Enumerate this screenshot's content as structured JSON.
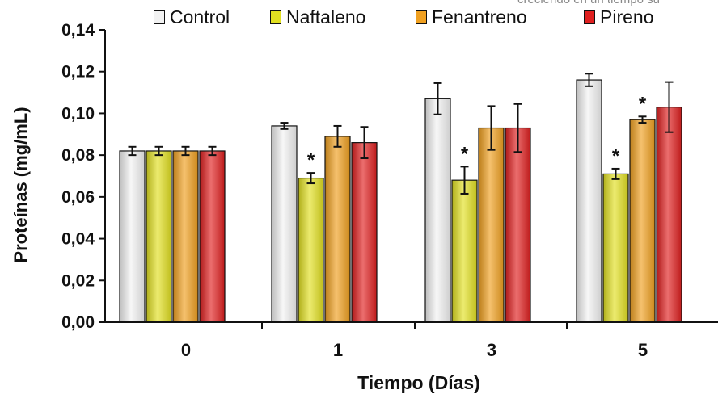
{
  "cropped_text": "creciendo en un tiempo su",
  "chart_data": {
    "type": "bar",
    "ylabel": "Proteínas (mg/mL)",
    "xlabel": "Tiempo (Días)",
    "ylim": [
      0,
      0.14
    ],
    "yticks": [
      "0,00",
      "0,02",
      "0,04",
      "0,06",
      "0,08",
      "0,10",
      "0,12",
      "0,14"
    ],
    "categories": [
      "0",
      "1",
      "3",
      "5"
    ],
    "legend_position": "top",
    "grid": false,
    "series": [
      {
        "name": "Control",
        "color": "#f2f2f2",
        "values": [
          0.082,
          0.094,
          0.107,
          0.116
        ],
        "errors": [
          0.002,
          0.0015,
          0.0075,
          0.003
        ],
        "asterisks": [
          false,
          false,
          false,
          false
        ]
      },
      {
        "name": "Naftaleno",
        "color": "#e2e021",
        "values": [
          0.082,
          0.069,
          0.068,
          0.071
        ],
        "errors": [
          0.002,
          0.0025,
          0.0065,
          0.0025
        ],
        "asterisks": [
          false,
          true,
          true,
          true
        ]
      },
      {
        "name": "Fenantreno",
        "color": "#f0a020",
        "values": [
          0.082,
          0.089,
          0.093,
          0.097
        ],
        "errors": [
          0.002,
          0.005,
          0.0105,
          0.0015
        ],
        "asterisks": [
          false,
          false,
          false,
          true
        ]
      },
      {
        "name": "Pireno",
        "color": "#e02020",
        "values": [
          0.082,
          0.086,
          0.093,
          0.103
        ],
        "errors": [
          0.002,
          0.0075,
          0.0115,
          0.012
        ],
        "asterisks": [
          false,
          false,
          false,
          false
        ]
      }
    ],
    "annotation_symbol": "*"
  }
}
